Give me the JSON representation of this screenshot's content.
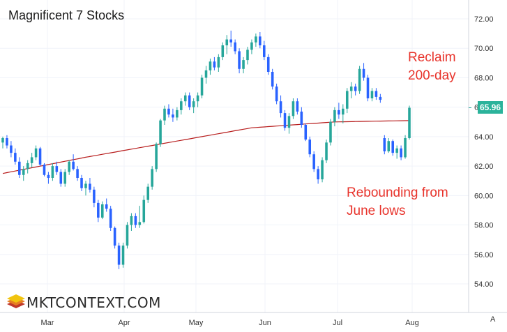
{
  "title": "Magnificent 7 Stocks",
  "annotations": {
    "reclaim": [
      "Reclaim",
      "200-day"
    ],
    "rebound": [
      "Rebounding from",
      "June lows"
    ]
  },
  "logo_text": "MKTCONTEXT.COM",
  "corner_label": "A",
  "colors": {
    "up": "#26a69a",
    "down": "#2962ff",
    "ma": "#b71c1c",
    "annotation": "#e8332b",
    "price_tag": "#2bb39b"
  },
  "chart_data": {
    "type": "candlestick",
    "title": "Magnificent 7 Stocks",
    "y_axis": {
      "position": "right",
      "ticks": [
        "72.00",
        "70.00",
        "68.00",
        "66.00",
        "64.00",
        "62.00",
        "60.00",
        "58.00",
        "56.00",
        "54.00"
      ],
      "ylim": [
        53.0,
        73.0
      ]
    },
    "x_axis": {
      "ticks": [
        "Mar",
        "Apr",
        "May",
        "Jun",
        "Jul",
        "Aug"
      ]
    },
    "last_price_label": "65.96",
    "grid": true,
    "series": [
      {
        "name": "",
        "type": "ohlc",
        "values": [
          [
            63.6,
            64.0,
            63.2,
            63.9
          ],
          [
            63.9,
            64.1,
            63.2,
            63.4
          ],
          [
            63.4,
            63.7,
            62.6,
            62.9
          ],
          [
            62.9,
            63.2,
            62.1,
            62.3
          ],
          [
            62.3,
            62.6,
            61.2,
            61.4
          ],
          [
            61.4,
            62.0,
            61.0,
            61.8
          ],
          [
            61.8,
            62.4,
            61.5,
            62.2
          ],
          [
            62.2,
            62.9,
            61.9,
            62.6
          ],
          [
            62.6,
            63.4,
            62.4,
            63.2
          ],
          [
            63.2,
            63.3,
            62.0,
            62.1
          ],
          [
            62.1,
            62.2,
            61.3,
            61.4
          ],
          [
            61.4,
            61.6,
            60.8,
            61.2
          ],
          [
            61.2,
            62.2,
            61.0,
            62.0
          ],
          [
            62.0,
            62.3,
            61.4,
            61.6
          ],
          [
            61.6,
            61.8,
            60.6,
            60.8
          ],
          [
            60.8,
            61.8,
            60.6,
            61.6
          ],
          [
            61.6,
            62.4,
            61.4,
            62.3
          ],
          [
            62.3,
            62.8,
            61.7,
            61.8
          ],
          [
            61.8,
            62.0,
            61.0,
            61.2
          ],
          [
            61.2,
            61.4,
            60.3,
            60.5
          ],
          [
            60.5,
            61.0,
            60.0,
            60.8
          ],
          [
            60.8,
            61.2,
            60.2,
            60.4
          ],
          [
            60.4,
            60.6,
            59.2,
            59.5
          ],
          [
            59.5,
            59.7,
            58.2,
            58.5
          ],
          [
            58.5,
            59.6,
            58.4,
            59.4
          ],
          [
            59.4,
            59.8,
            58.9,
            59.1
          ],
          [
            59.1,
            59.3,
            57.6,
            57.8
          ],
          [
            57.8,
            57.9,
            56.4,
            56.6
          ],
          [
            56.6,
            56.8,
            55.0,
            55.3
          ],
          [
            55.3,
            56.8,
            55.1,
            56.6
          ],
          [
            56.6,
            58.2,
            56.4,
            58.0
          ],
          [
            58.0,
            58.8,
            57.6,
            58.6
          ],
          [
            58.6,
            58.8,
            57.8,
            58.0
          ],
          [
            58.0,
            59.3,
            57.8,
            58.2
          ],
          [
            58.2,
            60.0,
            58.1,
            59.7
          ],
          [
            59.7,
            60.8,
            59.5,
            60.6
          ],
          [
            60.6,
            62.0,
            60.4,
            61.8
          ],
          [
            61.8,
            63.6,
            61.6,
            63.5
          ],
          [
            63.5,
            65.2,
            63.3,
            65.1
          ],
          [
            65.1,
            66.1,
            64.8,
            65.9
          ],
          [
            65.9,
            66.2,
            65.3,
            65.5
          ],
          [
            65.5,
            65.9,
            65.0,
            65.3
          ],
          [
            65.3,
            66.0,
            65.1,
            65.8
          ],
          [
            65.8,
            66.6,
            65.5,
            66.4
          ],
          [
            66.4,
            67.0,
            66.1,
            66.8
          ],
          [
            66.8,
            67.0,
            65.8,
            66.0
          ],
          [
            66.0,
            66.6,
            65.6,
            66.4
          ],
          [
            66.4,
            67.0,
            66.0,
            66.8
          ],
          [
            66.8,
            68.2,
            66.6,
            68.0
          ],
          [
            68.0,
            68.8,
            67.6,
            68.5
          ],
          [
            68.5,
            69.3,
            68.2,
            69.1
          ],
          [
            69.1,
            69.4,
            68.5,
            68.7
          ],
          [
            68.7,
            69.6,
            68.4,
            69.4
          ],
          [
            69.4,
            70.4,
            69.2,
            70.2
          ],
          [
            70.2,
            70.9,
            69.6,
            70.6
          ],
          [
            70.6,
            71.2,
            70.1,
            70.4
          ],
          [
            70.4,
            70.6,
            69.6,
            69.8
          ],
          [
            69.8,
            70.0,
            68.3,
            68.6
          ],
          [
            68.6,
            69.4,
            68.3,
            69.2
          ],
          [
            69.2,
            70.1,
            68.9,
            69.9
          ],
          [
            69.9,
            70.6,
            69.6,
            70.4
          ],
          [
            70.4,
            71.0,
            70.1,
            70.8
          ],
          [
            70.8,
            71.1,
            70.0,
            70.2
          ],
          [
            70.2,
            70.5,
            69.2,
            69.4
          ],
          [
            69.4,
            69.6,
            68.2,
            68.4
          ],
          [
            68.4,
            68.6,
            67.2,
            67.4
          ],
          [
            67.4,
            67.6,
            66.2,
            66.4
          ],
          [
            66.4,
            66.8,
            65.3,
            65.6
          ],
          [
            65.6,
            65.8,
            64.4,
            64.6
          ],
          [
            64.6,
            65.6,
            64.2,
            65.4
          ],
          [
            65.4,
            66.6,
            65.2,
            66.4
          ],
          [
            66.4,
            66.6,
            65.5,
            65.7
          ],
          [
            65.7,
            66.0,
            64.6,
            64.8
          ],
          [
            64.8,
            64.9,
            63.7,
            63.8
          ],
          [
            63.8,
            64.0,
            62.6,
            62.8
          ],
          [
            62.8,
            63.0,
            61.6,
            61.8
          ],
          [
            61.8,
            62.0,
            60.8,
            61.1
          ],
          [
            61.1,
            62.6,
            60.9,
            62.4
          ],
          [
            62.4,
            63.8,
            62.2,
            63.6
          ],
          [
            63.6,
            65.2,
            63.4,
            65.0
          ],
          [
            65.0,
            66.0,
            64.7,
            65.8
          ],
          [
            65.8,
            66.3,
            65.2,
            65.5
          ],
          [
            65.5,
            66.2,
            64.9,
            65.9
          ],
          [
            65.9,
            67.3,
            65.6,
            67.1
          ],
          [
            67.1,
            67.7,
            66.6,
            67.4
          ],
          [
            67.4,
            67.6,
            66.8,
            67.1
          ],
          [
            67.1,
            68.8,
            66.9,
            68.6
          ],
          [
            68.6,
            69.0,
            67.8,
            68.0
          ],
          [
            68.0,
            68.2,
            66.4,
            66.6
          ],
          [
            66.6,
            67.3,
            66.4,
            67.1
          ],
          [
            67.1,
            67.3,
            66.5,
            66.7
          ],
          [
            66.7,
            66.9,
            66.3,
            66.5
          ],
          [
            63.9,
            64.1,
            62.8,
            63.0
          ],
          [
            63.0,
            63.9,
            62.9,
            63.7
          ],
          [
            63.7,
            63.8,
            62.7,
            62.9
          ],
          [
            62.9,
            63.4,
            62.5,
            63.2
          ],
          [
            63.2,
            63.4,
            62.4,
            62.6
          ],
          [
            62.6,
            64.1,
            62.5,
            63.9
          ],
          [
            63.9,
            66.1,
            63.8,
            65.96
          ]
        ]
      },
      {
        "name": "",
        "type": "line",
        "x": [
          0,
          20,
          40,
          60,
          80,
          100
        ],
        "values": [
          61.5,
          62.6,
          63.6,
          64.6,
          65.0,
          65.1
        ]
      }
    ]
  }
}
